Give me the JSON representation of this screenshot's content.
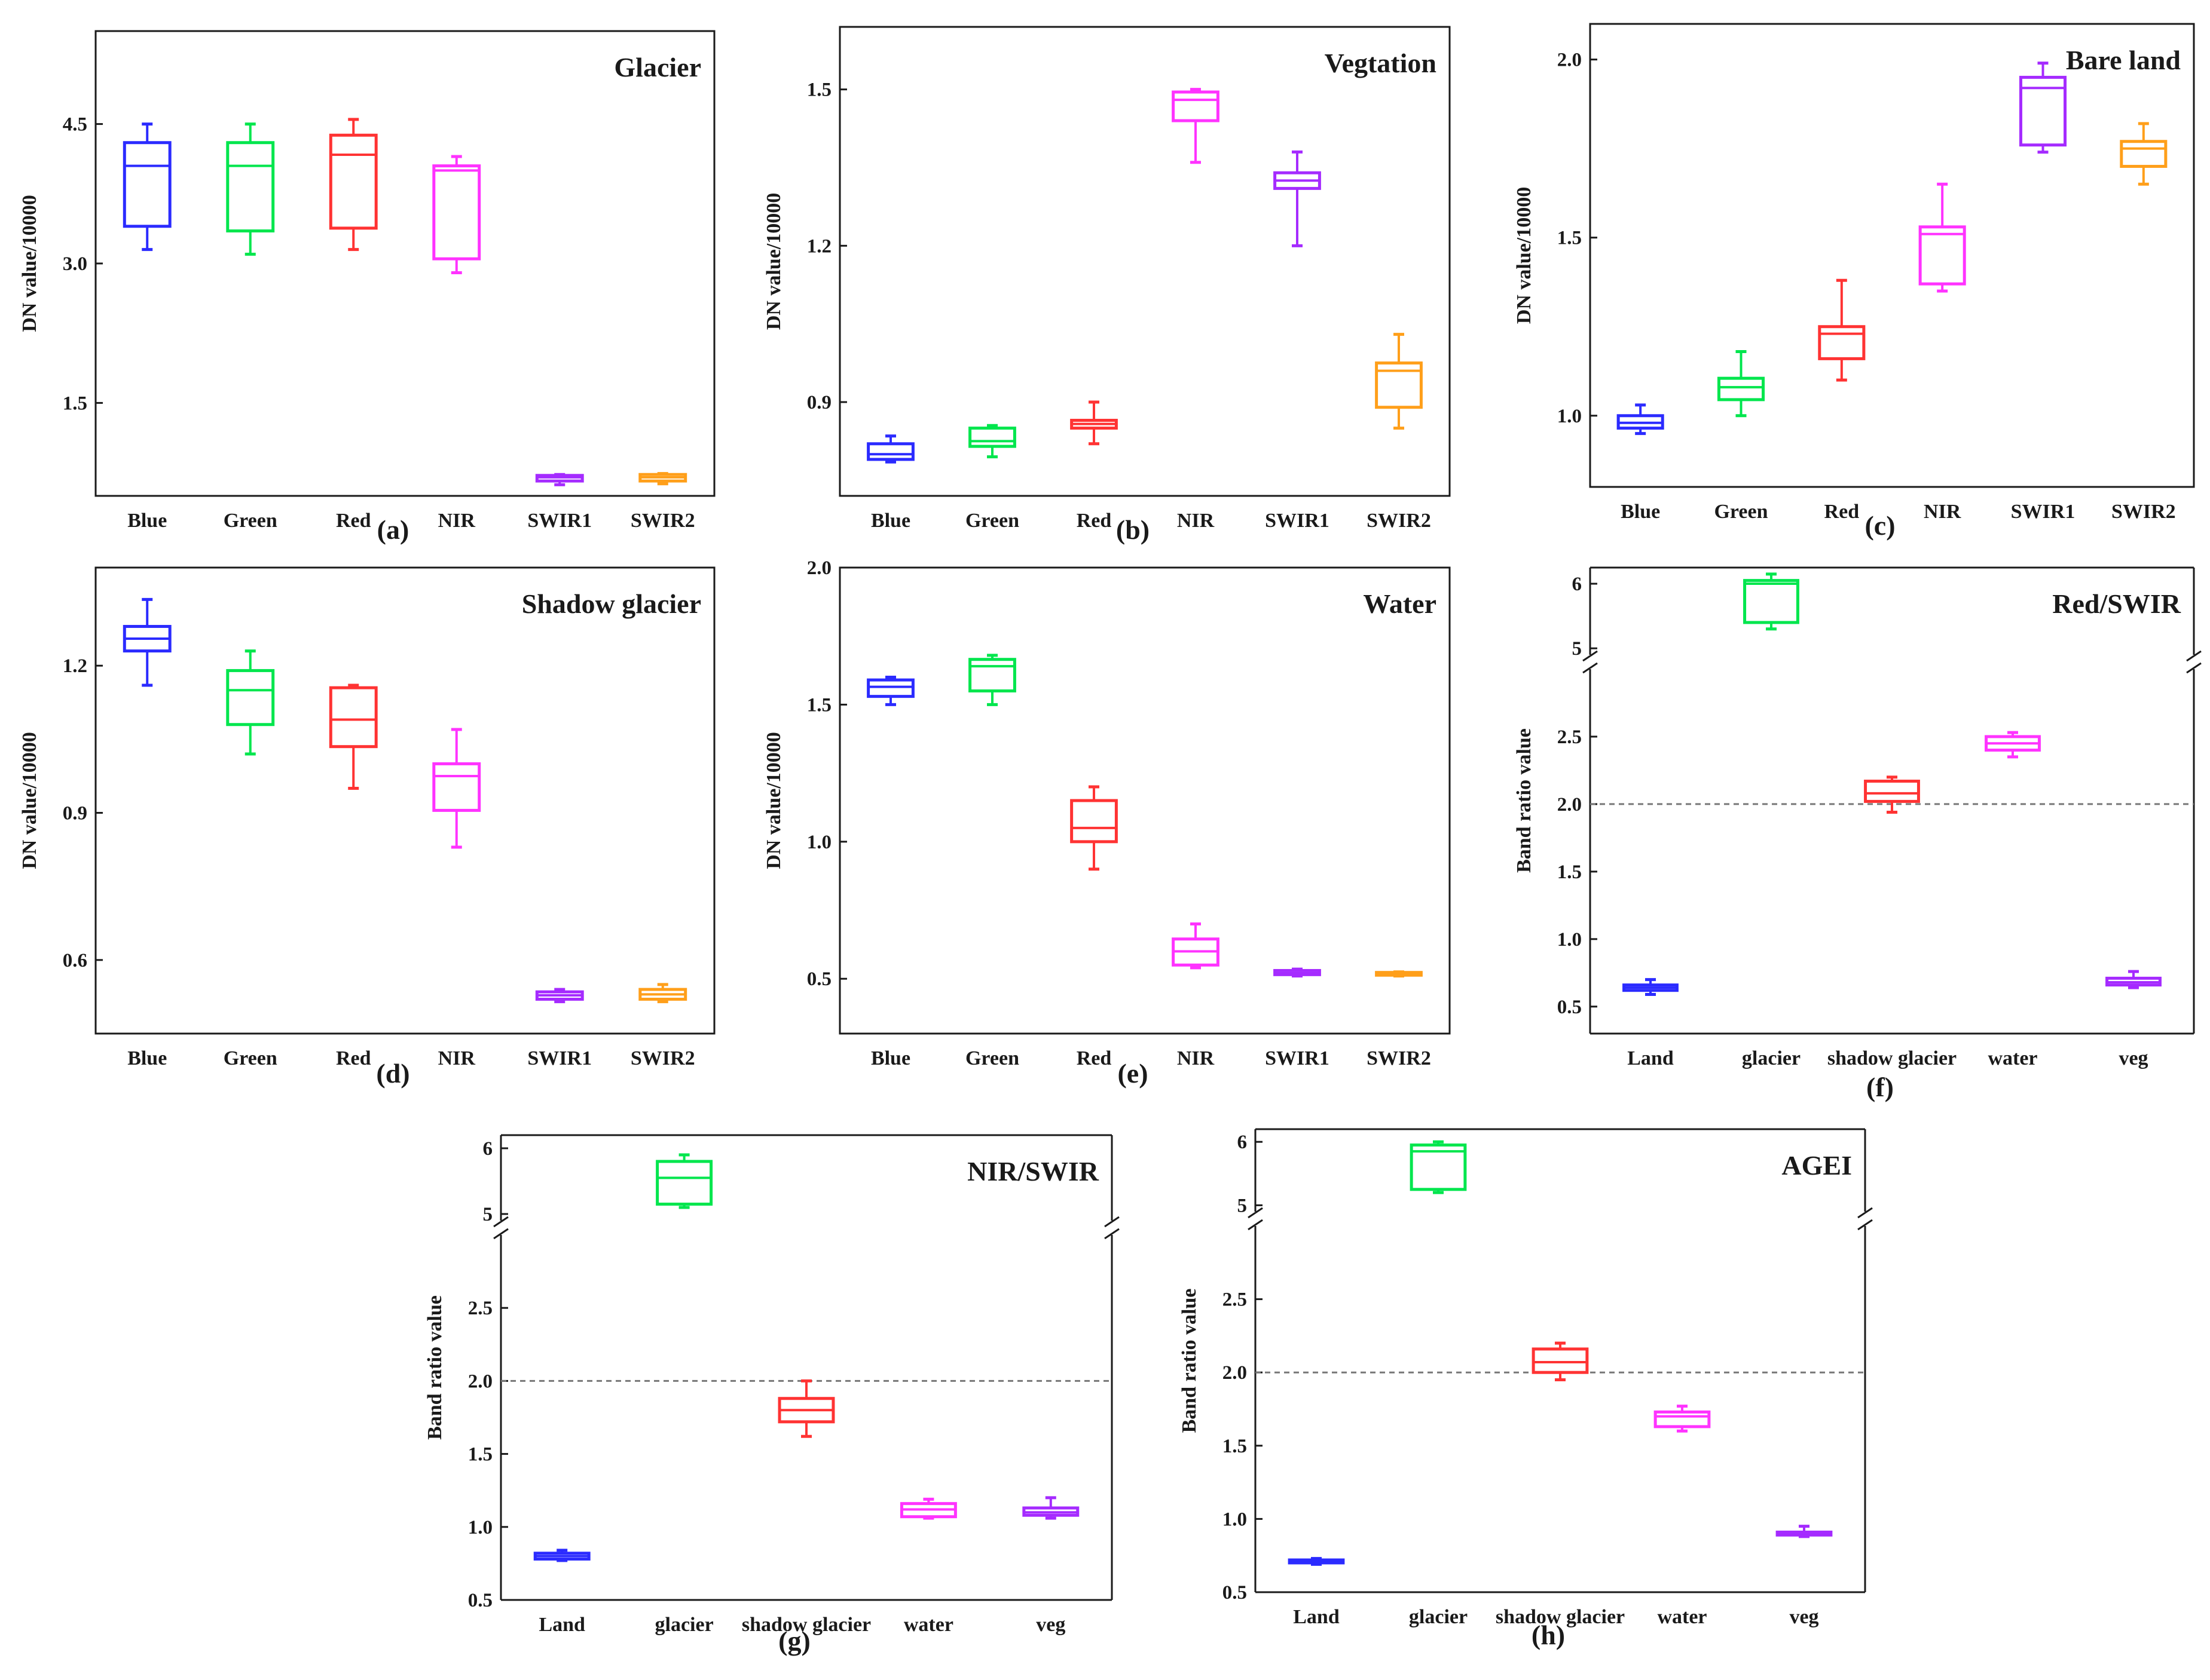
{
  "colors": {
    "Blue": "#2b2bff",
    "Green": "#00e64d",
    "Red": "#ff3333",
    "NIR": "#ff33ff",
    "SWIR1": "#a52bff",
    "SWIR2": "#ff9f1a",
    "Land": "#2b2bff",
    "glacier": "#00e64d",
    "shadow glacier": "#ff3333",
    "water": "#ff33ff",
    "veg": "#a52bff",
    "axis": "#1a1a1a",
    "threshold": "#777777"
  },
  "chart_data": [
    {
      "type": "box",
      "panel": "(a)",
      "title": "Glacier",
      "ylabel": "DN value/10000",
      "ylim": [
        0.5,
        5.5
      ],
      "yticks": [
        "1.5",
        "3.0",
        "4.5"
      ],
      "categories": [
        "Blue",
        "Green",
        "Red",
        "NIR",
        "SWIR1",
        "SWIR2"
      ],
      "boxes": [
        {
          "min": 3.15,
          "q1": 3.4,
          "median": 4.05,
          "q3": 4.3,
          "max": 4.5
        },
        {
          "min": 3.1,
          "q1": 3.35,
          "median": 4.05,
          "q3": 4.3,
          "max": 4.5
        },
        {
          "min": 3.15,
          "q1": 3.38,
          "median": 4.17,
          "q3": 4.38,
          "max": 4.55
        },
        {
          "min": 2.9,
          "q1": 3.05,
          "median": 4.0,
          "q3": 4.05,
          "max": 4.15
        },
        {
          "min": 0.62,
          "q1": 0.66,
          "median": 0.7,
          "q3": 0.72,
          "max": 0.73
        },
        {
          "min": 0.63,
          "q1": 0.66,
          "median": 0.7,
          "q3": 0.73,
          "max": 0.74
        }
      ]
    },
    {
      "type": "box",
      "panel": "(b)",
      "title": "Vegtation",
      "ylabel": "DN value/10000",
      "ylim": [
        0.72,
        1.62
      ],
      "yticks": [
        "0.9",
        "1.2",
        "1.5"
      ],
      "categories": [
        "Blue",
        "Green",
        "Red",
        "NIR",
        "SWIR1",
        "SWIR2"
      ],
      "boxes": [
        {
          "min": 0.785,
          "q1": 0.79,
          "median": 0.8,
          "q3": 0.82,
          "max": 0.835
        },
        {
          "min": 0.795,
          "q1": 0.815,
          "median": 0.825,
          "q3": 0.85,
          "max": 0.855
        },
        {
          "min": 0.82,
          "q1": 0.85,
          "median": 0.858,
          "q3": 0.865,
          "max": 0.9
        },
        {
          "min": 1.36,
          "q1": 1.44,
          "median": 1.48,
          "q3": 1.495,
          "max": 1.5
        },
        {
          "min": 1.2,
          "q1": 1.31,
          "median": 1.325,
          "q3": 1.34,
          "max": 1.38
        },
        {
          "min": 0.85,
          "q1": 0.89,
          "median": 0.96,
          "q3": 0.975,
          "max": 1.03
        }
      ]
    },
    {
      "type": "box",
      "panel": "(c)",
      "title": "Bare land",
      "ylabel": "DN value/10000",
      "ylim": [
        0.8,
        2.1
      ],
      "yticks": [
        "1.0",
        "1.5",
        "2.0"
      ],
      "categories": [
        "Blue",
        "Green",
        "Red",
        "NIR",
        "SWIR1",
        "SWIR2"
      ],
      "boxes": [
        {
          "min": 0.95,
          "q1": 0.965,
          "median": 0.98,
          "q3": 1.0,
          "max": 1.03
        },
        {
          "min": 1.0,
          "q1": 1.045,
          "median": 1.08,
          "q3": 1.105,
          "max": 1.18
        },
        {
          "min": 1.1,
          "q1": 1.16,
          "median": 1.23,
          "q3": 1.25,
          "max": 1.38
        },
        {
          "min": 1.35,
          "q1": 1.37,
          "median": 1.51,
          "q3": 1.53,
          "max": 1.65
        },
        {
          "min": 1.74,
          "q1": 1.76,
          "median": 1.92,
          "q3": 1.95,
          "max": 1.99
        },
        {
          "min": 1.65,
          "q1": 1.7,
          "median": 1.75,
          "q3": 1.77,
          "max": 1.82
        }
      ]
    },
    {
      "type": "box",
      "panel": "(d)",
      "title": "Shadow glacier",
      "ylabel": "DN value/10000",
      "ylim": [
        0.45,
        1.4
      ],
      "yticks": [
        "0.6",
        "0.9",
        "1.2"
      ],
      "categories": [
        "Blue",
        "Green",
        "Red",
        "NIR",
        "SWIR1",
        "SWIR2"
      ],
      "boxes": [
        {
          "min": 1.16,
          "q1": 1.23,
          "median": 1.255,
          "q3": 1.28,
          "max": 1.335
        },
        {
          "min": 1.02,
          "q1": 1.08,
          "median": 1.15,
          "q3": 1.19,
          "max": 1.23
        },
        {
          "min": 0.95,
          "q1": 1.035,
          "median": 1.09,
          "q3": 1.155,
          "max": 1.16
        },
        {
          "min": 0.83,
          "q1": 0.905,
          "median": 0.975,
          "q3": 1.0,
          "max": 1.07
        },
        {
          "min": 0.515,
          "q1": 0.52,
          "median": 0.528,
          "q3": 0.535,
          "max": 0.54
        },
        {
          "min": 0.515,
          "q1": 0.52,
          "median": 0.53,
          "q3": 0.54,
          "max": 0.55
        }
      ]
    },
    {
      "type": "box",
      "panel": "(e)",
      "title": "Water",
      "ylabel": "DN value/10000",
      "ylim": [
        0.3,
        2.0
      ],
      "yticks": [
        "0.5",
        "1.0",
        "1.5",
        "2.0"
      ],
      "categories": [
        "Blue",
        "Green",
        "Red",
        "NIR",
        "SWIR1",
        "SWIR2"
      ],
      "boxes": [
        {
          "min": 1.5,
          "q1": 1.53,
          "median": 1.565,
          "q3": 1.59,
          "max": 1.6
        },
        {
          "min": 1.5,
          "q1": 1.55,
          "median": 1.64,
          "q3": 1.665,
          "max": 1.68
        },
        {
          "min": 0.9,
          "q1": 1.0,
          "median": 1.05,
          "q3": 1.15,
          "max": 1.2
        },
        {
          "min": 0.54,
          "q1": 0.55,
          "median": 0.6,
          "q3": 0.645,
          "max": 0.7
        },
        {
          "min": 0.51,
          "q1": 0.515,
          "median": 0.52,
          "q3": 0.53,
          "max": 0.535
        },
        {
          "min": 0.51,
          "q1": 0.513,
          "median": 0.518,
          "q3": 0.523,
          "max": 0.525
        }
      ]
    },
    {
      "type": "box",
      "panel": "(f)",
      "title": "Red/SWIR",
      "ylabel": "Band ratio value",
      "broken_axis": true,
      "lower_ylim": [
        0.3,
        3.0
      ],
      "upper_ylim": [
        4.9,
        6.25
      ],
      "lower_yticks": [
        "0.5",
        "1.0",
        "1.5",
        "2.0",
        "2.5"
      ],
      "upper_yticks": [
        "5",
        "6"
      ],
      "threshold": 2.0,
      "categories": [
        "Land",
        "glacier",
        "shadow glacier",
        "water",
        "veg"
      ],
      "boxes": [
        {
          "min": 0.59,
          "q1": 0.62,
          "median": 0.64,
          "q3": 0.66,
          "max": 0.7
        },
        {
          "min": 5.3,
          "q1": 5.4,
          "median": 6.0,
          "q3": 6.05,
          "max": 6.15
        },
        {
          "min": 1.94,
          "q1": 2.02,
          "median": 2.08,
          "q3": 2.17,
          "max": 2.2
        },
        {
          "min": 2.35,
          "q1": 2.4,
          "median": 2.45,
          "q3": 2.5,
          "max": 2.53
        },
        {
          "min": 0.64,
          "q1": 0.66,
          "median": 0.68,
          "q3": 0.71,
          "max": 0.76
        }
      ]
    },
    {
      "type": "box",
      "panel": "(g)",
      "title": "NIR/SWIR",
      "ylabel": "Band ratio value",
      "broken_axis": true,
      "lower_ylim": [
        0.5,
        3.0
      ],
      "upper_ylim": [
        4.9,
        6.2
      ],
      "lower_yticks": [
        "0.5",
        "1.0",
        "1.5",
        "2.0",
        "2.5"
      ],
      "upper_yticks": [
        "5",
        "6"
      ],
      "threshold": 2.0,
      "categories": [
        "Land",
        "glacier",
        "shadow glacier",
        "water",
        "veg"
      ],
      "boxes": [
        {
          "min": 0.77,
          "q1": 0.78,
          "median": 0.8,
          "q3": 0.82,
          "max": 0.84
        },
        {
          "min": 5.1,
          "q1": 5.15,
          "median": 5.55,
          "q3": 5.8,
          "max": 5.9
        },
        {
          "min": 1.62,
          "q1": 1.72,
          "median": 1.8,
          "q3": 1.88,
          "max": 2.0
        },
        {
          "min": 1.06,
          "q1": 1.07,
          "median": 1.12,
          "q3": 1.16,
          "max": 1.19
        },
        {
          "min": 1.06,
          "q1": 1.08,
          "median": 1.1,
          "q3": 1.13,
          "max": 1.2
        }
      ]
    },
    {
      "type": "box",
      "panel": "(h)",
      "title": "AGEI",
      "ylabel": "Band ratio value",
      "broken_axis": true,
      "lower_ylim": [
        0.5,
        3.0
      ],
      "upper_ylim": [
        4.9,
        6.2
      ],
      "lower_yticks": [
        "0.5",
        "1.0",
        "1.5",
        "2.0",
        "2.5"
      ],
      "upper_yticks": [
        "5",
        "6"
      ],
      "threshold": 2.0,
      "categories": [
        "Land",
        "glacier",
        "shadow glacier",
        "water",
        "veg"
      ],
      "boxes": [
        {
          "min": 0.69,
          "q1": 0.7,
          "median": 0.71,
          "q3": 0.72,
          "max": 0.73
        },
        {
          "min": 5.2,
          "q1": 5.25,
          "median": 5.85,
          "q3": 5.95,
          "max": 6.0
        },
        {
          "min": 1.95,
          "q1": 2.0,
          "median": 2.07,
          "q3": 2.16,
          "max": 2.2
        },
        {
          "min": 1.6,
          "q1": 1.63,
          "median": 1.7,
          "q3": 1.73,
          "max": 1.77
        },
        {
          "min": 0.88,
          "q1": 0.89,
          "median": 0.9,
          "q3": 0.91,
          "max": 0.95
        }
      ]
    }
  ]
}
